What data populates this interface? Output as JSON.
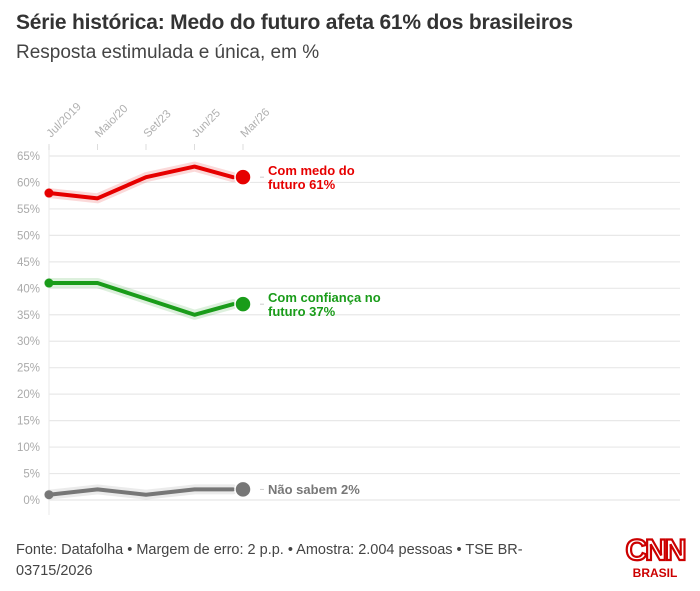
{
  "header": {
    "title": "Série histórica: Medo do futuro afeta 61% dos brasileiros",
    "subtitle": "Resposta estimulada e única, em %"
  },
  "chart_data": {
    "type": "line",
    "title": "Série histórica: Medo do futuro afeta 61% dos brasileiros",
    "subtitle": "Resposta estimulada e única, em %",
    "xlabel": "",
    "ylabel": "",
    "categories": [
      "Jul/2019",
      "Maio/20",
      "Set/23",
      "Jun/25",
      "Mar/26"
    ],
    "ylim": [
      0,
      65
    ],
    "yticks": [
      0,
      5,
      10,
      15,
      20,
      25,
      30,
      35,
      40,
      45,
      50,
      55,
      60,
      65
    ],
    "ytick_labels": [
      "0%",
      "5%",
      "10%",
      "15%",
      "20%",
      "25%",
      "30%",
      "35%",
      "40%",
      "45%",
      "50%",
      "55%",
      "60%",
      "65%"
    ],
    "grid": true,
    "legend": "direct-labels-right",
    "series": [
      {
        "name": "Com medo do futuro",
        "label_line1": "Com medo do",
        "label_line2": "futuro 61%",
        "color": "#e60000",
        "values": [
          58,
          57,
          61,
          63,
          61
        ]
      },
      {
        "name": "Com confiança no futuro",
        "label_line1": "Com confiança no",
        "label_line2": "futuro 37%",
        "color": "#1a9c1a",
        "values": [
          41,
          41,
          38,
          35,
          37
        ]
      },
      {
        "name": "Não sabem",
        "label_line1": "Não sabem 2%",
        "label_line2": "",
        "color": "#777777",
        "values": [
          1,
          2,
          1,
          2,
          2
        ]
      }
    ]
  },
  "footer": {
    "source": "Fonte: Datafolha • Margem de erro: 2 p.p. • Amostra: 2.004 pessoas • TSE BR-03715/2026"
  },
  "logo": {
    "brand": "CNN",
    "sub": "BRASIL",
    "color": "#cc0000"
  }
}
